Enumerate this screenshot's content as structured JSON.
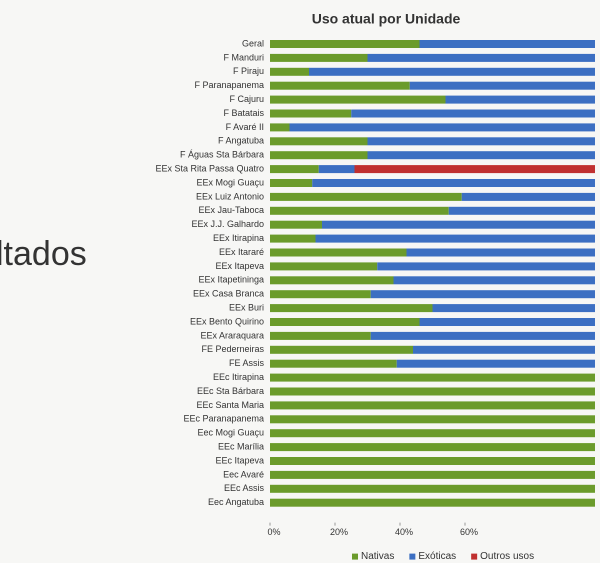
{
  "slide_text": "ltados",
  "chart_data": {
    "type": "stacked_bar_horizontal",
    "title": "Uso atual por Unidade",
    "categories": [
      "Geral",
      "F Manduri",
      "F Piraju",
      "F Paranapanema",
      "F Cajuru",
      "F Batatais",
      "F Avaré II",
      "F Angatuba",
      "F Águas Sta Bárbara",
      "EEx Sta Rita Passa Quatro",
      "EEx Mogi Guaçu",
      "EEx Luiz Antonio",
      "EEx Jau-Taboca",
      "EEx J.J. Galhardo",
      "EEx Itirapina",
      "EEx Itararé",
      "EEx Itapeva",
      "EEx Itapetininga",
      "EEx Casa Branca",
      "EEx Buri",
      "EEx Bento Quirino",
      "EEx Araraquara",
      "FE Pederneiras",
      "FE Assis",
      "EEc Itirapina",
      "EEc Sta Bárbara",
      "EEc Santa Maria",
      "EEc Paranapanema",
      "Eec Mogi Guaçu",
      "EEc Marília",
      "EEc Itapeva",
      "Eec Avaré",
      "EEc Assis",
      "Eec Angatuba"
    ],
    "series": [
      {
        "name": "Nativas",
        "color": "#6b9b2b",
        "values": [
          46,
          30,
          12,
          43,
          54,
          25,
          6,
          30,
          30,
          15,
          13,
          59,
          55,
          16,
          14,
          42,
          33,
          38,
          31,
          50,
          46,
          31,
          44,
          39,
          100,
          100,
          100,
          100,
          100,
          100,
          100,
          100,
          100,
          100
        ]
      },
      {
        "name": "Exóticas",
        "color": "#3c6fc2",
        "values": [
          54,
          70,
          88,
          57,
          46,
          75,
          94,
          70,
          70,
          11,
          87,
          41,
          45,
          84,
          86,
          58,
          67,
          62,
          69,
          50,
          54,
          69,
          56,
          61,
          0,
          0,
          0,
          0,
          0,
          0,
          0,
          0,
          0,
          0
        ]
      },
      {
        "name": "Outros usos",
        "color": "#c0302f",
        "values": [
          0,
          0,
          0,
          0,
          0,
          0,
          0,
          0,
          0,
          74,
          0,
          0,
          0,
          0,
          0,
          0,
          0,
          0,
          0,
          0,
          0,
          0,
          0,
          0,
          0,
          0,
          0,
          0,
          0,
          0,
          0,
          0,
          0,
          0
        ]
      }
    ],
    "xlim": [
      0,
      100
    ],
    "xticks": [
      {
        "value": 0,
        "label": "0%"
      },
      {
        "value": 20,
        "label": "20%"
      },
      {
        "value": 40,
        "label": "40%"
      },
      {
        "value": 60,
        "label": "60%"
      }
    ],
    "legend": "bottom"
  }
}
